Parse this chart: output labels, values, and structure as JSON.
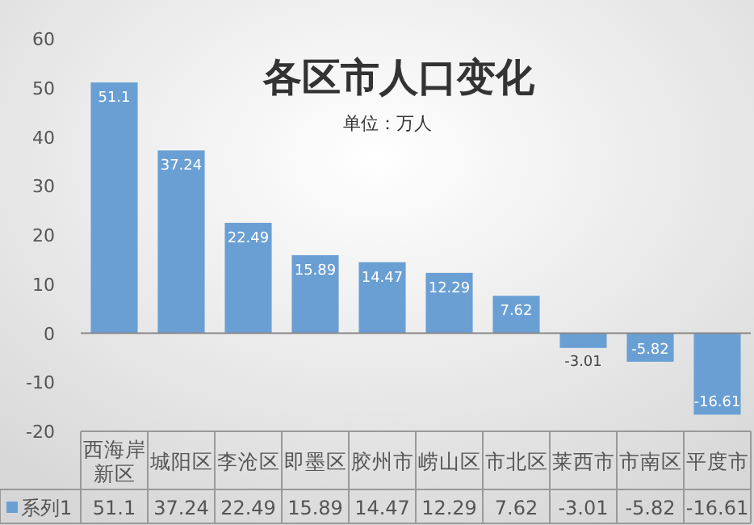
{
  "chart_data": {
    "type": "bar",
    "title": "各区市人口变化",
    "subtitle": "单位：万人",
    "categories": [
      [
        "西海岸",
        "新区"
      ],
      "城阳区",
      "李沧区",
      "即墨区",
      "胶州市",
      "崂山区",
      "市北区",
      "莱西市",
      "市南区",
      "平度市"
    ],
    "series": [
      {
        "name": "系列1",
        "color": "#6a9fd4",
        "values": [
          51.1,
          37.24,
          22.49,
          15.89,
          14.47,
          12.29,
          7.62,
          -3.01,
          -5.82,
          -16.61
        ],
        "value_labels": [
          "51.1",
          "37.24",
          "22.49",
          "15.89",
          "14.47",
          "12.29",
          "7.62",
          "-3.01",
          "-5.82",
          "-16.61"
        ]
      }
    ],
    "ylim": [
      -20,
      60
    ],
    "yticks": [
      -20,
      -10,
      0,
      10,
      20,
      30,
      40,
      50,
      60
    ],
    "annotations": [
      "51.1",
      "37.24",
      "22.49",
      "15.89",
      "14.47",
      "12.29",
      "7.62",
      "-3.01",
      "-5.82",
      "-16.61"
    ]
  }
}
